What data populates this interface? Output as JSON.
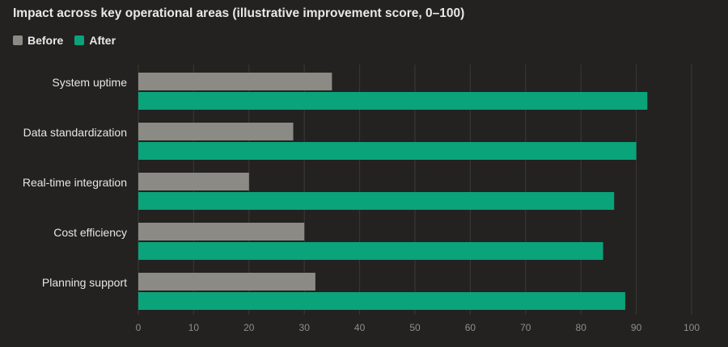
{
  "chart_data": {
    "type": "bar",
    "orientation": "horizontal",
    "title": "Impact across key operational areas (illustrative improvement score, 0–100)",
    "categories": [
      "System uptime",
      "Data standardization",
      "Real-time integration",
      "Cost efficiency",
      "Planning support"
    ],
    "series": [
      {
        "name": "Before",
        "color": "#8c8a84",
        "values": [
          35,
          28,
          20,
          30,
          32
        ]
      },
      {
        "name": "After",
        "color": "#0aa37a",
        "values": [
          92,
          90,
          86,
          84,
          88
        ]
      }
    ],
    "xlim": [
      0,
      100
    ],
    "xticks": [
      0,
      10,
      20,
      30,
      40,
      50,
      60,
      70,
      80,
      90,
      100
    ],
    "grid": true,
    "legend_position": "top-left"
  }
}
